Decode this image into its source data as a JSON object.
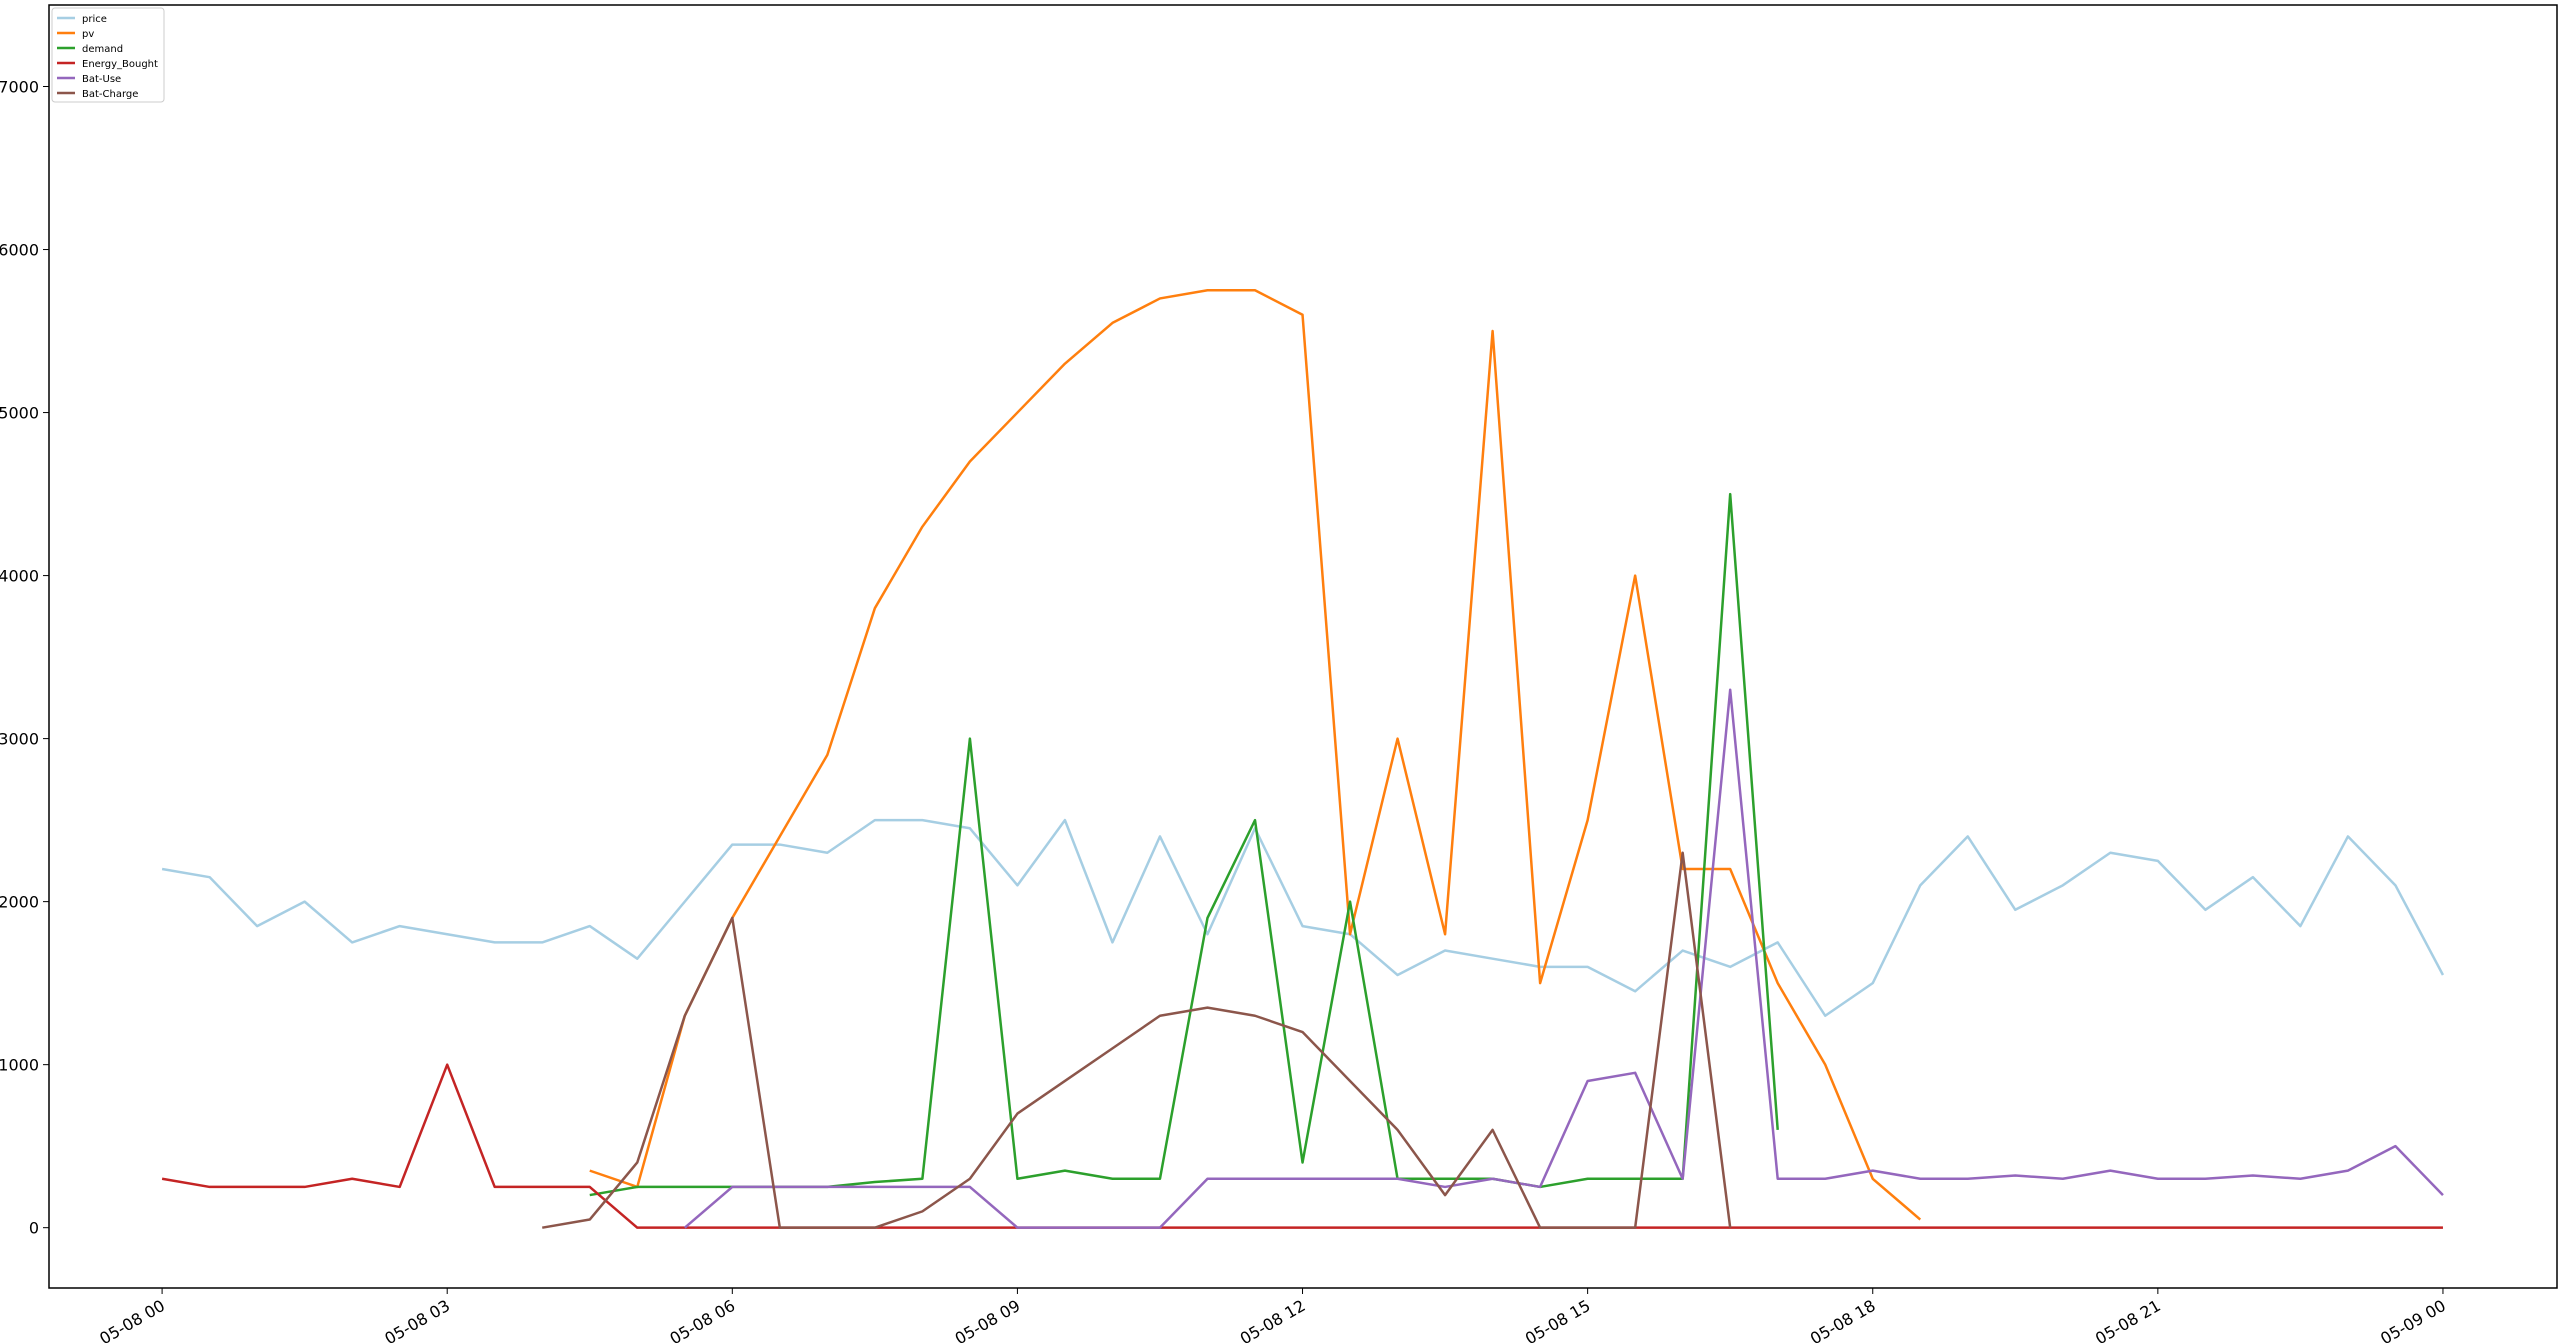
{
  "chart_data": {
    "type": "line",
    "x": [
      0,
      0.5,
      1,
      1.5,
      2,
      2.5,
      3,
      3.5,
      4,
      4.5,
      5,
      5.5,
      6,
      6.5,
      7,
      7.5,
      8,
      8.5,
      9,
      9.5,
      10,
      10.5,
      11,
      11.5,
      12,
      12.5,
      13,
      13.5,
      14,
      14.5,
      15,
      15.5,
      16,
      16.5,
      17,
      17.5,
      18,
      18.5,
      19,
      19.5,
      20,
      20.5,
      21,
      21.5,
      22,
      22.5,
      23,
      23.5,
      24
    ],
    "series": [
      {
        "name": "price",
        "color": "#a6cee3",
        "values": [
          2200,
          2150,
          1850,
          2000,
          1750,
          1850,
          1800,
          1750,
          1750,
          1850,
          1650,
          2000,
          2350,
          2350,
          2300,
          2500,
          2500,
          2450,
          2100,
          2500,
          1750,
          2400,
          1800,
          2450,
          1850,
          1800,
          1550,
          1700,
          1650,
          1600,
          1600,
          1450,
          1700,
          1600,
          1750,
          1300,
          1500,
          2100,
          2400,
          1950,
          2100,
          2300,
          2250,
          1950,
          2150,
          1850,
          2400,
          2100,
          1550
        ]
      },
      {
        "name": "pv",
        "color": "#ff7f0e",
        "values": [
          null,
          null,
          null,
          null,
          null,
          null,
          null,
          null,
          null,
          350,
          250,
          1300,
          1900,
          2400,
          2900,
          3800,
          4300,
          4700,
          5000,
          5300,
          5550,
          5700,
          5750,
          5750,
          5600,
          1800,
          3000,
          1800,
          5500,
          1500,
          2500,
          4000,
          2200,
          2200,
          1500,
          1000,
          300,
          50,
          null,
          null,
          null,
          null,
          null,
          null,
          null,
          null,
          null,
          null,
          null
        ]
      },
      {
        "name": "demand",
        "color": "#2ca02c",
        "values": [
          null,
          null,
          null,
          null,
          null,
          null,
          null,
          null,
          null,
          200,
          250,
          250,
          250,
          250,
          250,
          280,
          300,
          3000,
          300,
          350,
          300,
          300,
          1900,
          2500,
          400,
          2000,
          300,
          300,
          300,
          250,
          300,
          300,
          300,
          4500,
          600,
          null,
          null,
          null,
          null,
          null,
          null,
          null,
          null,
          null,
          null,
          null,
          null,
          null,
          null
        ]
      },
      {
        "name": "Energy_Bought",
        "color": "#c42424",
        "values": [
          300,
          250,
          250,
          250,
          300,
          250,
          1000,
          250,
          250,
          250,
          0,
          0,
          0,
          0,
          0,
          0,
          0,
          0,
          0,
          0,
          0,
          0,
          0,
          0,
          0,
          0,
          0,
          0,
          0,
          0,
          0,
          0,
          0,
          0,
          0,
          0,
          0,
          0,
          0,
          0,
          0,
          0,
          0,
          0,
          0,
          0,
          0,
          0,
          0
        ]
      },
      {
        "name": "Bat-Use",
        "color": "#9467bd",
        "values": [
          null,
          null,
          null,
          null,
          null,
          null,
          null,
          null,
          null,
          null,
          null,
          0,
          250,
          250,
          250,
          250,
          250,
          250,
          0,
          0,
          0,
          0,
          300,
          300,
          300,
          300,
          300,
          250,
          300,
          250,
          900,
          950,
          300,
          3300,
          300,
          300,
          350,
          300,
          300,
          320,
          300,
          350,
          300,
          300,
          320,
          300,
          350,
          500,
          200
        ]
      },
      {
        "name": "Bat-Charge",
        "color": "#8c564b",
        "values": [
          null,
          null,
          null,
          null,
          null,
          null,
          null,
          null,
          0,
          50,
          400,
          1300,
          1900,
          0,
          0,
          0,
          100,
          300,
          700,
          900,
          1100,
          1300,
          1350,
          1300,
          1200,
          900,
          600,
          200,
          600,
          0,
          0,
          0,
          2300,
          0,
          null,
          null,
          null,
          null,
          null,
          null,
          null,
          null,
          null,
          null,
          null,
          null,
          null,
          null,
          null
        ]
      }
    ],
    "xlim": [
      -1.19,
      25.2
    ],
    "xticks": [
      {
        "value": 0,
        "label": "05-08 00"
      },
      {
        "value": 3,
        "label": "05-08 03"
      },
      {
        "value": 6,
        "label": "05-08 06"
      },
      {
        "value": 9,
        "label": "05-08 09"
      },
      {
        "value": 12,
        "label": "05-08 12"
      },
      {
        "value": 15,
        "label": "05-08 15"
      },
      {
        "value": 18,
        "label": "05-08 18"
      },
      {
        "value": 21,
        "label": "05-08 21"
      },
      {
        "value": 24,
        "label": "05-09 00"
      }
    ],
    "ylim": [
      -370,
      7500
    ],
    "yticks": [
      0,
      1000,
      2000,
      3000,
      4000,
      5000,
      6000,
      7000
    ],
    "grid": false,
    "legend": "upper left"
  }
}
